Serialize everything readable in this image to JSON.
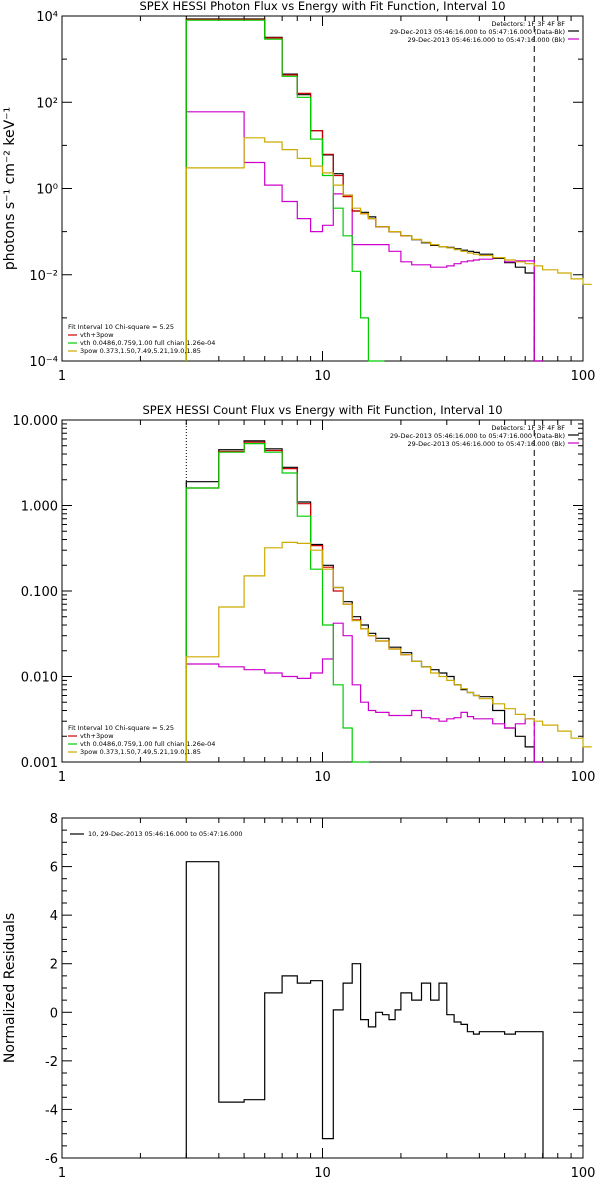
{
  "chart_data": [
    {
      "type": "line",
      "title": "SPEX HESSI Photon Flux vs Energy with Fit Function, Interval 10",
      "xlabel": "",
      "ylabel": "photons s⁻¹ cm⁻² keV⁻¹",
      "xscale": "log",
      "yscale": "log",
      "xlim": [
        1,
        100
      ],
      "ylim": [
        0.0001,
        10000
      ],
      "xticks": [
        1,
        10,
        100
      ],
      "xtick_labels": [
        "1",
        "10",
        "100"
      ],
      "yticks": [
        0.0001,
        0.01,
        1,
        100,
        10000
      ],
      "ytick_labels": [
        "10⁻⁴",
        "10⁻²",
        "10⁰",
        "10²",
        "10⁴"
      ],
      "vlines": [
        {
          "x": 3.0,
          "style": "dotted"
        },
        {
          "x": 65.0,
          "style": "dashed"
        }
      ],
      "header_text": [
        "Detectors: 1F 3F 4F 8F",
        "29-Dec-2013 05:46:16.000 to 05:47:16.000 (Data-Bk)",
        "29-Dec-2013 05:46:16.000 to 05:47:16.000 (Bk)"
      ],
      "fit_text": [
        "Fit Interval 10   Chi-square = 5.25",
        "vth+3pow",
        "vth 0.0486,0.759,1.00   full chian 1.26e-04",
        "3pow 0.373,1.50,7.49,5.21,19.0,1.85"
      ],
      "series": [
        {
          "name": "data-bk",
          "color": "#000000",
          "x": [
            3,
            4,
            5,
            6,
            7,
            8,
            9,
            10,
            11,
            12,
            13,
            14,
            15,
            16,
            18,
            20,
            22,
            24,
            26,
            28,
            30,
            32,
            34,
            36,
            38,
            40,
            45,
            50,
            55,
            60,
            65
          ],
          "y": [
            8500,
            8500,
            8500,
            3200,
            450,
            150,
            22,
            6,
            2.2,
            0.7,
            0.3,
            0.28,
            0.22,
            0.13,
            0.1,
            0.08,
            0.065,
            0.055,
            0.048,
            0.045,
            0.043,
            0.04,
            0.037,
            0.035,
            0.033,
            0.03,
            0.024,
            0.019,
            0.015,
            0.011,
            0.0001
          ]
        },
        {
          "name": "bk",
          "color": "#cc00cc",
          "x": [
            3,
            4,
            5,
            6,
            7,
            8,
            9,
            10,
            11,
            12,
            13,
            14,
            15,
            16,
            18,
            20,
            22,
            24,
            26,
            28,
            30,
            32,
            34,
            36,
            38,
            40,
            45,
            50,
            55,
            60,
            65
          ],
          "y": [
            60,
            60,
            4,
            1.2,
            0.5,
            0.2,
            0.1,
            0.14,
            0.75,
            0.7,
            0.05,
            0.05,
            0.05,
            0.05,
            0.035,
            0.02,
            0.017,
            0.017,
            0.015,
            0.015,
            0.016,
            0.018,
            0.02,
            0.021,
            0.022,
            0.023,
            0.025,
            0.02,
            0.021,
            0.021,
            0.0001
          ]
        },
        {
          "name": "vth+3pow",
          "color": "#cc0000",
          "x": [
            3,
            4,
            5,
            6,
            7,
            8,
            9,
            10,
            11,
            12,
            13,
            14,
            15,
            16,
            18,
            20
          ],
          "y": [
            8300,
            8300,
            8300,
            3100,
            430,
            160,
            22,
            6.2,
            2.0,
            0.65,
            0.3,
            0.26,
            0.2,
            0.13,
            0.1,
            0.08
          ]
        },
        {
          "name": "vth",
          "color": "#00cc00",
          "x": [
            3,
            4,
            5,
            6,
            7,
            8,
            9,
            10,
            11,
            12,
            13,
            14,
            15,
            16
          ],
          "y": [
            8000,
            8000,
            8000,
            2900,
            400,
            130,
            14,
            2.0,
            0.35,
            0.08,
            0.012,
            0.001,
            0.0001,
            0.0001
          ]
        },
        {
          "name": "3pow",
          "color": "#ccaa00",
          "x": [
            3,
            4,
            5,
            6,
            7,
            8,
            9,
            10,
            11,
            12,
            13,
            14,
            15,
            16,
            18,
            20,
            22,
            24,
            26,
            28,
            30,
            32,
            34,
            36,
            38,
            40,
            45,
            50,
            55,
            60,
            65,
            70,
            80,
            90,
            100
          ],
          "y": [
            3,
            3,
            15,
            12,
            8,
            5,
            3.3,
            2.3,
            1.2,
            0.7,
            0.35,
            0.26,
            0.2,
            0.13,
            0.1,
            0.08,
            0.066,
            0.057,
            0.05,
            0.045,
            0.042,
            0.038,
            0.035,
            0.032,
            0.03,
            0.028,
            0.025,
            0.022,
            0.02,
            0.018,
            0.016,
            0.013,
            0.011,
            0.008,
            0.006
          ]
        }
      ]
    },
    {
      "type": "line",
      "title": "SPEX HESSI Count Flux vs Energy with Fit Function, Interval 10",
      "xlabel": "",
      "ylabel": "",
      "xscale": "log",
      "yscale": "log",
      "xlim": [
        1,
        100
      ],
      "ylim": [
        0.001,
        10
      ],
      "xticks": [
        1,
        10,
        100
      ],
      "xtick_labels": [
        "1",
        "10",
        "100"
      ],
      "yticks": [
        0.001,
        0.01,
        0.1,
        1,
        10
      ],
      "ytick_labels": [
        "0.001",
        "0.010",
        "0.100",
        "1.000",
        "10.000"
      ],
      "vlines": [
        {
          "x": 3.0,
          "style": "dotted"
        },
        {
          "x": 65.0,
          "style": "dashed"
        }
      ],
      "header_text": [
        "Detectors: 1F 3F 4F 8F",
        "29-Dec-2013 05:46:16.000 to 05:47:16.000 (Data-Bk)",
        "29-Dec-2013 05:46:16.000 to 05:47:16.000 (Bk)"
      ],
      "fit_text": [
        "Fit Interval 10   Chi-square = 5.25",
        "vth+3pow",
        "vth 0.0486,0.759,1.00   full chian 1.26e-04",
        "3pow 0.373,1.50,7.49,5.21,19.0,1.85"
      ],
      "series": [
        {
          "name": "data-bk",
          "color": "#000000",
          "x": [
            3,
            4,
            5,
            6,
            7,
            8,
            9,
            10,
            11,
            12,
            13,
            14,
            15,
            16,
            18,
            20,
            22,
            24,
            26,
            28,
            30,
            32,
            34,
            36,
            38,
            40,
            45,
            50,
            55,
            60,
            65
          ],
          "y": [
            1.9,
            4.5,
            5.7,
            4.6,
            2.8,
            1.1,
            0.35,
            0.2,
            0.11,
            0.075,
            0.05,
            0.04,
            0.032,
            0.028,
            0.022,
            0.019,
            0.015,
            0.013,
            0.012,
            0.011,
            0.01,
            0.008,
            0.007,
            0.0065,
            0.006,
            0.0058,
            0.004,
            0.0025,
            0.002,
            0.0015,
            0.001
          ]
        },
        {
          "name": "bk",
          "color": "#cc00cc",
          "x": [
            3,
            4,
            5,
            6,
            7,
            8,
            9,
            10,
            11,
            12,
            13,
            14,
            15,
            16,
            18,
            20,
            22,
            24,
            26,
            28,
            30,
            32,
            34,
            36,
            38,
            40,
            45,
            50,
            55,
            60,
            65
          ],
          "y": [
            0.014,
            0.013,
            0.012,
            0.011,
            0.01,
            0.0095,
            0.011,
            0.016,
            0.042,
            0.03,
            0.008,
            0.005,
            0.004,
            0.0038,
            0.0035,
            0.0035,
            0.004,
            0.0033,
            0.0032,
            0.003,
            0.0032,
            0.0033,
            0.0038,
            0.0034,
            0.0032,
            0.0032,
            0.0028,
            0.0025,
            0.0028,
            0.0032,
            0.001
          ]
        },
        {
          "name": "vth+3pow",
          "color": "#cc0000",
          "x": [
            3,
            4,
            5,
            6,
            7,
            8,
            9,
            10,
            11,
            12,
            13,
            14,
            15,
            16,
            18,
            20
          ],
          "y": [
            1.6,
            4.3,
            5.5,
            4.4,
            2.7,
            1.05,
            0.34,
            0.19,
            0.1,
            0.07,
            0.046,
            0.036,
            0.03,
            0.026,
            0.021,
            0.018
          ]
        },
        {
          "name": "vth",
          "color": "#00cc00",
          "x": [
            3,
            4,
            5,
            6,
            7,
            8,
            9,
            10,
            11,
            12,
            13,
            14
          ],
          "y": [
            1.6,
            4.2,
            5.3,
            4.2,
            2.4,
            0.75,
            0.18,
            0.04,
            0.008,
            0.0025,
            0.001,
            0.001
          ]
        },
        {
          "name": "3pow",
          "color": "#ccaa00",
          "x": [
            3,
            4,
            5,
            6,
            7,
            8,
            9,
            10,
            11,
            12,
            13,
            14,
            15,
            16,
            18,
            20,
            22,
            24,
            26,
            28,
            30,
            32,
            34,
            36,
            38,
            40,
            45,
            50,
            55,
            60,
            65,
            70,
            80,
            90,
            100
          ],
          "y": [
            0.017,
            0.065,
            0.15,
            0.32,
            0.37,
            0.36,
            0.3,
            0.18,
            0.11,
            0.07,
            0.045,
            0.036,
            0.03,
            0.026,
            0.021,
            0.018,
            0.015,
            0.013,
            0.011,
            0.01,
            0.009,
            0.008,
            0.0072,
            0.0065,
            0.006,
            0.0055,
            0.0048,
            0.0042,
            0.0036,
            0.0032,
            0.003,
            0.0027,
            0.0023,
            0.0019,
            0.0015
          ]
        }
      ]
    },
    {
      "type": "line",
      "title": "",
      "xlabel": "",
      "ylabel": "Normalized Residuals",
      "xscale": "log",
      "yscale": "linear",
      "xlim": [
        1,
        100
      ],
      "ylim": [
        -6,
        8
      ],
      "xticks": [
        1,
        10,
        100
      ],
      "xtick_labels": [
        "1",
        "10",
        "100"
      ],
      "yticks": [
        -6,
        -4,
        -2,
        0,
        2,
        4,
        6,
        8
      ],
      "ytick_labels": [
        "-6",
        "-4",
        "-2",
        "0",
        "2",
        "4",
        "6",
        "8"
      ],
      "legend": "10, 29-Dec-2013 05:46:16.000 to 05:47:16.000",
      "series": [
        {
          "name": "10, 29-Dec-2013 05:46:16.000 to 05:47:16.000",
          "color": "#000000",
          "x": [
            3,
            4,
            5,
            6,
            7,
            8,
            9,
            10,
            11,
            12,
            13,
            14,
            15,
            16,
            17,
            18,
            19,
            20,
            22,
            24,
            26,
            28,
            30,
            32,
            34,
            36,
            38,
            40,
            45,
            50,
            55,
            60,
            65
          ],
          "y": [
            6.2,
            -3.7,
            -3.6,
            0.8,
            1.5,
            1.2,
            1.3,
            -5.2,
            0.1,
            1.2,
            2.0,
            -0.3,
            -0.6,
            0.0,
            -0.1,
            -0.3,
            0.1,
            0.8,
            0.5,
            1.2,
            0.5,
            1.2,
            -0.1,
            -0.4,
            -0.5,
            -0.8,
            -0.9,
            -0.8,
            -0.8,
            -0.9,
            -0.8,
            -0.8,
            -0.8
          ]
        }
      ]
    }
  ]
}
